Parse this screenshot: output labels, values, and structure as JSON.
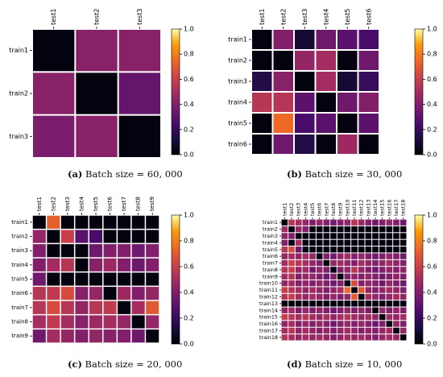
{
  "chart_data": [
    {
      "type": "heatmap",
      "title": "",
      "caption_tag": "(a)",
      "caption_text": "Batch size = 60, 000",
      "columns": [
        "test1",
        "test2",
        "test3"
      ],
      "rows": [
        "train1",
        "train2",
        "train3"
      ],
      "values": [
        [
          0.02,
          0.42,
          0.42
        ],
        [
          0.42,
          0.02,
          0.32
        ],
        [
          0.38,
          0.42,
          0.02
        ]
      ],
      "colorbar": {
        "range": [
          0,
          1
        ],
        "ticks": [
          "0.0",
          "0.2",
          "0.4",
          "0.6",
          "0.8",
          "1.0"
        ]
      }
    },
    {
      "type": "heatmap",
      "title": "",
      "caption_tag": "(b)",
      "caption_text": "Batch size = 30, 000",
      "columns": [
        "test1",
        "test2",
        "test3",
        "test4",
        "test5",
        "test6"
      ],
      "rows": [
        "train1",
        "train2",
        "train3",
        "train4",
        "train5",
        "train6"
      ],
      "values": [
        [
          0.02,
          0.4,
          0.1,
          0.35,
          0.3,
          0.25
        ],
        [
          0.02,
          0.02,
          0.45,
          0.5,
          0.02,
          0.35
        ],
        [
          0.15,
          0.42,
          0.02,
          0.5,
          0.1,
          0.2
        ],
        [
          0.55,
          0.55,
          0.3,
          0.02,
          0.35,
          0.4
        ],
        [
          0.02,
          0.75,
          0.25,
          0.3,
          0.02,
          0.3
        ],
        [
          0.02,
          0.35,
          0.15,
          0.02,
          0.48,
          0.02
        ]
      ],
      "colorbar": {
        "range": [
          0,
          1
        ],
        "ticks": [
          "0.0",
          "0.2",
          "0.4",
          "0.6",
          "0.8",
          "1.0"
        ]
      }
    },
    {
      "type": "heatmap",
      "title": "",
      "caption_tag": "(c)",
      "caption_text": "Batch size = 20, 000",
      "columns": [
        "test1",
        "test2",
        "test3",
        "test4",
        "test5",
        "test6",
        "test7",
        "test8",
        "test9"
      ],
      "rows": [
        "train1",
        "train2",
        "train3",
        "train4",
        "train5",
        "train6",
        "train7",
        "train8",
        "train9"
      ],
      "values": [
        [
          0.02,
          0.72,
          0.02,
          0.02,
          0.02,
          0.02,
          0.02,
          0.02,
          0.02
        ],
        [
          0.45,
          0.02,
          0.6,
          0.3,
          0.25,
          0.02,
          0.02,
          0.02,
          0.02
        ],
        [
          0.4,
          0.02,
          0.02,
          0.02,
          0.35,
          0.4,
          0.4,
          0.35,
          0.4
        ],
        [
          0.4,
          0.5,
          0.55,
          0.02,
          0.42,
          0.48,
          0.4,
          0.35,
          0.4
        ],
        [
          0.35,
          0.02,
          0.02,
          0.02,
          0.02,
          0.02,
          0.02,
          0.02,
          0.02
        ],
        [
          0.55,
          0.58,
          0.65,
          0.42,
          0.45,
          0.02,
          0.48,
          0.4,
          0.45
        ],
        [
          0.55,
          0.65,
          0.55,
          0.45,
          0.55,
          0.58,
          0.02,
          0.5,
          0.7
        ],
        [
          0.5,
          0.58,
          0.5,
          0.42,
          0.48,
          0.5,
          0.45,
          0.02,
          0.45
        ],
        [
          0.35,
          0.5,
          0.45,
          0.4,
          0.45,
          0.42,
          0.4,
          0.35,
          0.02
        ]
      ],
      "colorbar": {
        "range": [
          0,
          1
        ],
        "ticks": [
          "0.0",
          "0.2",
          "0.4",
          "0.6",
          "0.8",
          "1.0"
        ]
      }
    },
    {
      "type": "heatmap",
      "title": "",
      "caption_tag": "(d)",
      "caption_text": "Batch size = 10, 000",
      "columns": [
        "test1",
        "test2",
        "test3",
        "test4",
        "test5",
        "test6",
        "test7",
        "test8",
        "test9",
        "test10",
        "test11",
        "test12",
        "test13",
        "test14",
        "test15",
        "test16",
        "test17",
        "test18"
      ],
      "rows": [
        "train1",
        "train2",
        "train3",
        "train4",
        "train5",
        "train6",
        "train7",
        "train8",
        "train9",
        "train10",
        "train11",
        "train12",
        "train13",
        "train14",
        "train15",
        "train16",
        "train17",
        "train18"
      ],
      "values": [
        [
          0.02,
          0.55,
          0.5,
          0.45,
          0.4,
          0.45,
          0.4,
          0.35,
          0.4,
          0.45,
          0.55,
          0.45,
          0.4,
          0.35,
          0.4,
          0.45,
          0.4,
          0.35
        ],
        [
          0.5,
          0.02,
          0.45,
          0.4,
          0.02,
          0.02,
          0.02,
          0.02,
          0.02,
          0.02,
          0.02,
          0.02,
          0.02,
          0.02,
          0.02,
          0.02,
          0.02,
          0.02
        ],
        [
          0.45,
          0.4,
          0.02,
          0.02,
          0.02,
          0.02,
          0.02,
          0.02,
          0.02,
          0.02,
          0.02,
          0.02,
          0.02,
          0.02,
          0.02,
          0.02,
          0.02,
          0.02
        ],
        [
          0.4,
          0.02,
          0.5,
          0.02,
          0.02,
          0.02,
          0.02,
          0.02,
          0.02,
          0.02,
          0.02,
          0.02,
          0.02,
          0.02,
          0.02,
          0.02,
          0.02,
          0.02
        ],
        [
          0.55,
          0.65,
          0.35,
          0.02,
          0.02,
          0.02,
          0.02,
          0.02,
          0.02,
          0.02,
          0.02,
          0.02,
          0.02,
          0.02,
          0.02,
          0.02,
          0.02,
          0.02
        ],
        [
          0.45,
          0.5,
          0.45,
          0.5,
          0.45,
          0.02,
          0.4,
          0.35,
          0.45,
          0.5,
          0.4,
          0.45,
          0.4,
          0.35,
          0.4,
          0.45,
          0.4,
          0.35
        ],
        [
          0.5,
          0.6,
          0.55,
          0.5,
          0.45,
          0.4,
          0.02,
          0.45,
          0.5,
          0.45,
          0.4,
          0.5,
          0.45,
          0.4,
          0.45,
          0.5,
          0.45,
          0.4
        ],
        [
          0.55,
          0.6,
          0.45,
          0.5,
          0.35,
          0.45,
          0.4,
          0.02,
          0.4,
          0.45,
          0.55,
          0.45,
          0.4,
          0.35,
          0.4,
          0.45,
          0.4,
          0.45
        ],
        [
          0.5,
          0.55,
          0.4,
          0.45,
          0.45,
          0.4,
          0.35,
          0.4,
          0.02,
          0.4,
          0.45,
          0.4,
          0.45,
          0.4,
          0.35,
          0.4,
          0.45,
          0.4
        ],
        [
          0.45,
          0.5,
          0.4,
          0.45,
          0.4,
          0.45,
          0.4,
          0.35,
          0.4,
          0.02,
          0.65,
          0.4,
          0.45,
          0.4,
          0.35,
          0.45,
          0.4,
          0.35
        ],
        [
          0.6,
          0.55,
          0.5,
          0.45,
          0.5,
          0.45,
          0.4,
          0.45,
          0.5,
          0.75,
          0.02,
          0.7,
          0.45,
          0.4,
          0.45,
          0.5,
          0.45,
          0.4
        ],
        [
          0.55,
          0.6,
          0.5,
          0.45,
          0.5,
          0.45,
          0.4,
          0.45,
          0.4,
          0.45,
          0.7,
          0.02,
          0.5,
          0.45,
          0.4,
          0.45,
          0.5,
          0.45
        ],
        [
          0.02,
          0.02,
          0.02,
          0.02,
          0.02,
          0.02,
          0.02,
          0.02,
          0.02,
          0.02,
          0.02,
          0.02,
          0.02,
          0.02,
          0.02,
          0.02,
          0.02,
          0.02
        ],
        [
          0.45,
          0.5,
          0.4,
          0.45,
          0.4,
          0.45,
          0.4,
          0.35,
          0.4,
          0.45,
          0.4,
          0.45,
          0.4,
          0.02,
          0.45,
          0.4,
          0.45,
          0.4
        ],
        [
          0.6,
          0.55,
          0.5,
          0.55,
          0.5,
          0.45,
          0.5,
          0.45,
          0.5,
          0.55,
          0.5,
          0.45,
          0.5,
          0.45,
          0.02,
          0.5,
          0.45,
          0.5
        ],
        [
          0.45,
          0.5,
          0.4,
          0.45,
          0.4,
          0.45,
          0.4,
          0.35,
          0.4,
          0.45,
          0.4,
          0.45,
          0.4,
          0.35,
          0.4,
          0.02,
          0.45,
          0.4
        ],
        [
          0.5,
          0.55,
          0.45,
          0.5,
          0.45,
          0.4,
          0.45,
          0.4,
          0.45,
          0.5,
          0.45,
          0.4,
          0.45,
          0.4,
          0.45,
          0.5,
          0.02,
          0.45
        ],
        [
          0.55,
          0.5,
          0.45,
          0.5,
          0.45,
          0.5,
          0.45,
          0.4,
          0.45,
          0.5,
          0.45,
          0.5,
          0.45,
          0.4,
          0.45,
          0.5,
          0.45,
          0.02
        ]
      ],
      "colorbar": {
        "range": [
          0,
          1
        ],
        "ticks": [
          "0.0",
          "0.2",
          "0.4",
          "0.6",
          "0.8",
          "1.0"
        ]
      }
    }
  ]
}
